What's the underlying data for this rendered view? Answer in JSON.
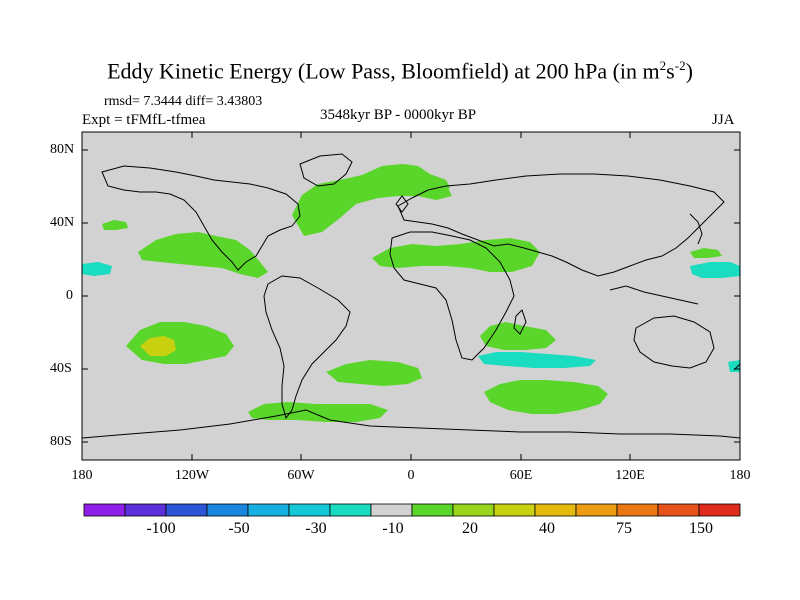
{
  "title": {
    "main": "Eddy Kinetic Energy (Low Pass, Bloomfield) at 200 hPa (in m",
    "exp1": "2",
    "mid": "s",
    "exp2": "-2",
    "close": ")"
  },
  "stats": "rmsd= 7.3444 diff= 3.43803",
  "experiment": "Expt = tFMfL-tfmea",
  "period": "3548kyr BP - 0000kyr BP",
  "season": "JJA",
  "lat_labels": [
    "80N",
    "40N",
    "0",
    "40S",
    "80S"
  ],
  "lon_labels": [
    "180",
    "120W",
    "60W",
    "0",
    "60E",
    "120E",
    "180"
  ],
  "colorbar": {
    "colors": [
      "#8f1fe6",
      "#5b2fd9",
      "#2c55d8",
      "#1a86e0",
      "#17aee0",
      "#14c8d8",
      "#19dcc0",
      "#d2d2d2",
      "#5ad62a",
      "#9ad41c",
      "#c8d10f",
      "#e4bb0c",
      "#eb9c10",
      "#ea7714",
      "#e5531a",
      "#df2b1c"
    ],
    "labels": [
      "-100",
      "-50",
      "-30",
      "-10",
      "20",
      "40",
      "75",
      "150"
    ]
  }
}
